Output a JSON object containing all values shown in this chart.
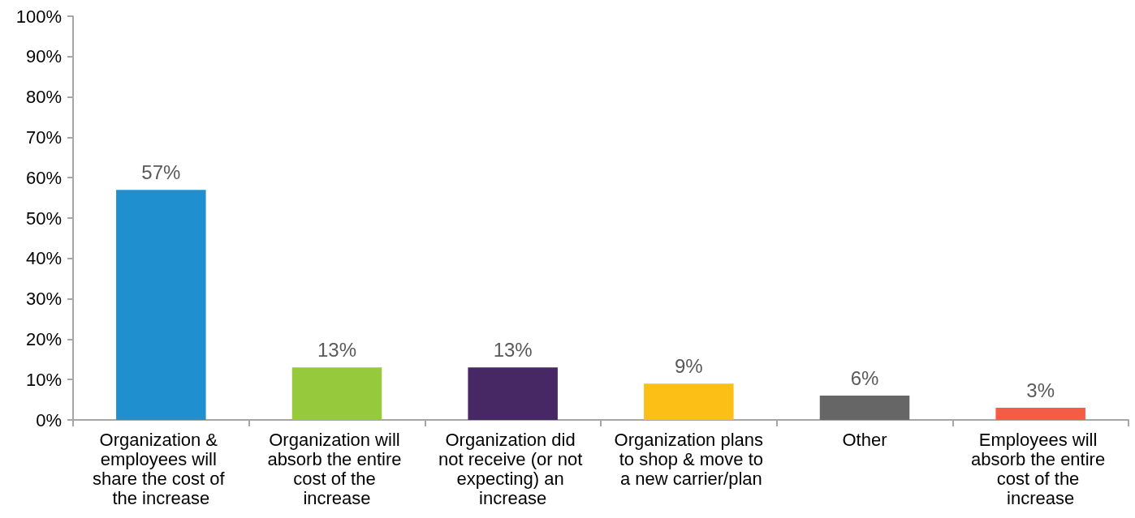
{
  "chart_data": {
    "type": "bar",
    "categories": [
      "Organization & employees will share the cost of the increase",
      "Organization will absorb the entire cost of the increase",
      "Organization did not receive (or not expecting) an increase",
      "Organization plans to shop & move to a new carrier/plan",
      "Other",
      "Employees will absorb the entire cost of the increase"
    ],
    "values": [
      57,
      13,
      13,
      9,
      6,
      3
    ],
    "colors": [
      "#1f8fd0",
      "#97c93d",
      "#482765",
      "#fbbf16",
      "#666666",
      "#f45c45"
    ],
    "value_labels": [
      "57%",
      "13%",
      "13%",
      "9%",
      "6%",
      "3%"
    ],
    "ylim": [
      0,
      100
    ],
    "yticks": [
      {
        "value": 0,
        "label": "0%"
      },
      {
        "value": 10,
        "label": "10%"
      },
      {
        "value": 20,
        "label": "20%"
      },
      {
        "value": 30,
        "label": "30%"
      },
      {
        "value": 40,
        "label": "40%"
      },
      {
        "value": 50,
        "label": "50%"
      },
      {
        "value": 60,
        "label": "60%"
      },
      {
        "value": 70,
        "label": "70%"
      },
      {
        "value": 80,
        "label": "80%"
      },
      {
        "value": 90,
        "label": "90%"
      },
      {
        "value": 100,
        "label": "100%"
      }
    ],
    "grid": false
  }
}
